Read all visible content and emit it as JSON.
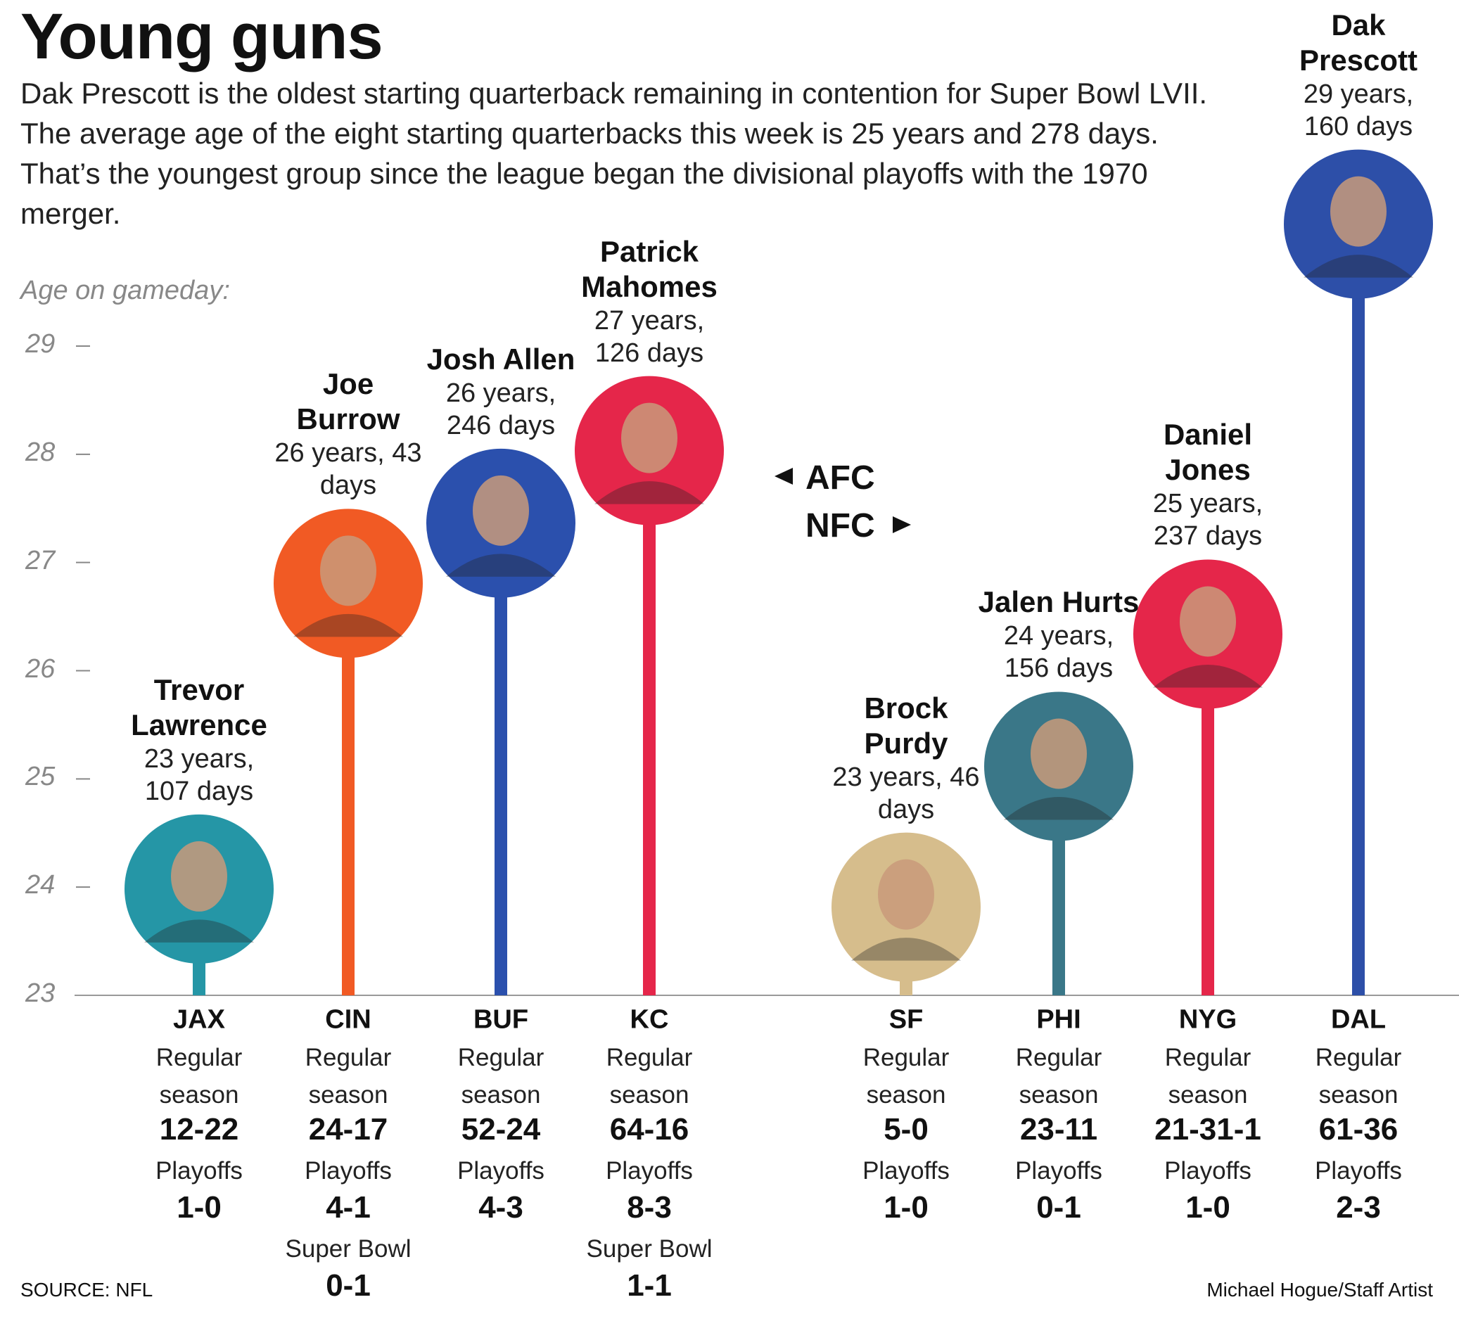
{
  "chart_data": {
    "type": "lollipop",
    "title": "Young guns",
    "subtitle": "Dak Prescott is the oldest starting quarterback remaining in contention for Super Bowl LVII. The average age of the eight starting quarterbacks this week is 25 years and 278 days. That’s the youngest group since the league began the divisional playoffs with the 1970 merger.",
    "y_label": "Age on gameday:",
    "ylim": [
      23,
      29
    ],
    "yticks": [
      23,
      24,
      25,
      26,
      27,
      28,
      29
    ],
    "conference_labels": [
      "AFC",
      "NFC"
    ],
    "categories": [
      "JAX",
      "CIN",
      "BUF",
      "KC",
      "SF",
      "PHI",
      "NYG",
      "DAL"
    ],
    "names": [
      "Trevor Lawrence",
      "Joe Burrow",
      "Josh Allen",
      "Patrick Mahomes",
      "Brock Purdy",
      "Jalen Hurts",
      "Daniel Jones",
      "Dak Prescott"
    ],
    "values": [
      23.293,
      26.118,
      26.674,
      27.345,
      23.126,
      24.427,
      25.649,
      29.438
    ],
    "value_labels": [
      "23 years, 107 days",
      "26 years, 43 days",
      "26 years, 246 days",
      "27 years, 126 days",
      "23 years, 46 days",
      "24 years, 156 days",
      "25 years, 237 days",
      "29 years, 160 days"
    ],
    "colors": [
      "#2596a6",
      "#f15a24",
      "#2b50ad",
      "#e5264a",
      "#d6bd8c",
      "#3a7788",
      "#e5264a",
      "#2d4fa8"
    ],
    "record_headers": {
      "regular": "Regular season",
      "playoffs": "Playoffs",
      "super_bowl": "Super Bowl"
    },
    "records": [
      {
        "regular": "12-22",
        "playoffs": "1-0"
      },
      {
        "regular": "24-17",
        "playoffs": "4-1",
        "super_bowl": "0-1"
      },
      {
        "regular": "52-24",
        "playoffs": "4-3"
      },
      {
        "regular": "64-16",
        "playoffs": "8-3",
        "super_bowl": "1-1"
      },
      {
        "regular": "5-0",
        "playoffs": "1-0"
      },
      {
        "regular": "23-11",
        "playoffs": "0-1"
      },
      {
        "regular": "21-31-1",
        "playoffs": "1-0"
      },
      {
        "regular": "61-36",
        "playoffs": "2-3"
      }
    ],
    "source": "SOURCE: NFL",
    "credit": "Michael Hogue/Staff Artist"
  }
}
